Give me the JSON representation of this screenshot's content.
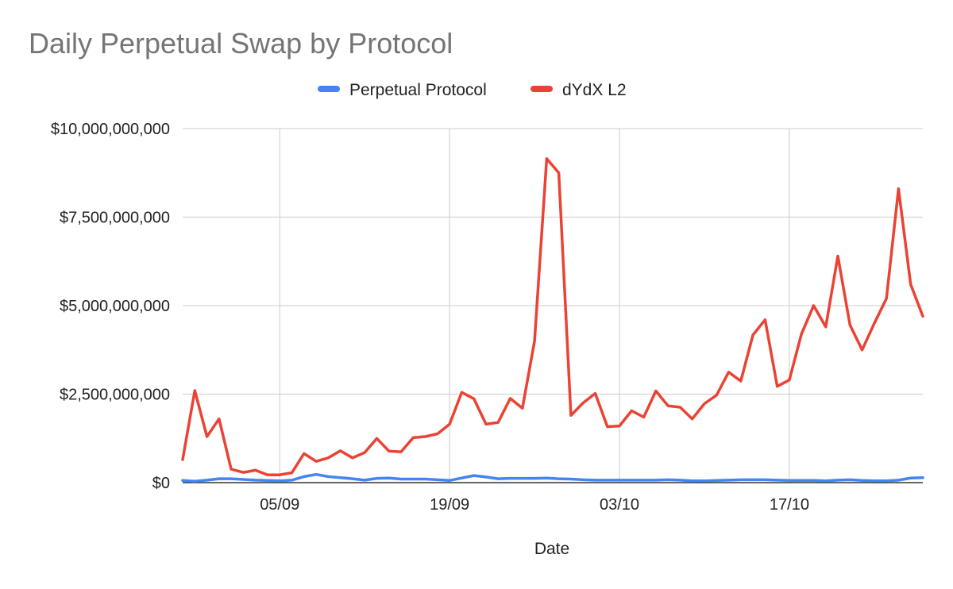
{
  "chart_data": {
    "type": "line",
    "title": "Daily Perpetual Swap by Protocol",
    "xlabel": "Date",
    "ylabel": "",
    "ylim": [
      0,
      10000000000
    ],
    "yticks": [
      {
        "value": 0,
        "label": "$0"
      },
      {
        "value": 2500000000,
        "label": "$2,500,000,000"
      },
      {
        "value": 5000000000,
        "label": "$5,000,000,000"
      },
      {
        "value": 7500000000,
        "label": "$7,500,000,000"
      },
      {
        "value": 10000000000,
        "label": "$10,000,000,000"
      }
    ],
    "xticks": [
      {
        "index": 8,
        "label": "05/09"
      },
      {
        "index": 22,
        "label": "19/09"
      },
      {
        "index": 36,
        "label": "03/10"
      },
      {
        "index": 50,
        "label": "17/10"
      }
    ],
    "grid": true,
    "legend_position": "top",
    "series": [
      {
        "name": "Perpetual Protocol",
        "color": "#4285f4",
        "values": [
          60000000,
          40000000,
          70000000,
          110000000,
          110000000,
          90000000,
          70000000,
          60000000,
          50000000,
          70000000,
          170000000,
          230000000,
          170000000,
          140000000,
          110000000,
          70000000,
          120000000,
          130000000,
          100000000,
          100000000,
          100000000,
          80000000,
          60000000,
          130000000,
          200000000,
          160000000,
          110000000,
          120000000,
          120000000,
          120000000,
          130000000,
          110000000,
          100000000,
          80000000,
          70000000,
          70000000,
          70000000,
          70000000,
          70000000,
          70000000,
          80000000,
          70000000,
          50000000,
          50000000,
          60000000,
          70000000,
          80000000,
          80000000,
          80000000,
          70000000,
          60000000,
          60000000,
          60000000,
          50000000,
          70000000,
          80000000,
          60000000,
          50000000,
          50000000,
          70000000,
          130000000,
          140000000
        ]
      },
      {
        "name": "dYdX L2",
        "color": "#ea4335",
        "values": [
          650000000,
          2600000000,
          1300000000,
          1800000000,
          380000000,
          290000000,
          350000000,
          220000000,
          220000000,
          280000000,
          820000000,
          600000000,
          700000000,
          900000000,
          700000000,
          850000000,
          1250000000,
          890000000,
          870000000,
          1270000000,
          1300000000,
          1380000000,
          1650000000,
          2550000000,
          2370000000,
          1650000000,
          1700000000,
          2380000000,
          2100000000,
          4000000000,
          9150000000,
          8750000000,
          1900000000,
          2250000000,
          2520000000,
          1580000000,
          1600000000,
          2030000000,
          1850000000,
          2590000000,
          2170000000,
          2130000000,
          1800000000,
          2230000000,
          2470000000,
          3120000000,
          2870000000,
          4170000000,
          4600000000,
          2720000000,
          2900000000,
          4200000000,
          5000000000,
          4400000000,
          6400000000,
          4450000000,
          3750000000,
          4500000000,
          5200000000,
          8300000000,
          5600000000,
          4700000000
        ]
      }
    ]
  }
}
